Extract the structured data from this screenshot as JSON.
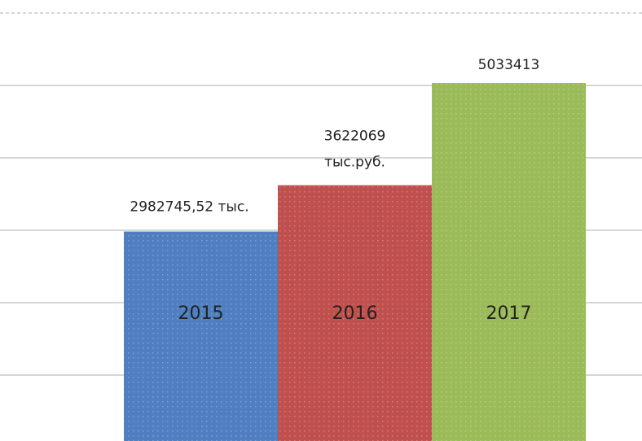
{
  "chart_data": {
    "type": "bar",
    "categories": [
      "2015",
      "2016",
      "2017"
    ],
    "values": [
      2982745.52,
      3622069,
      5033413
    ],
    "value_labels": [
      "2982745,52 тыс.",
      "3622069\nтыс.руб.",
      "5033413"
    ],
    "colors": [
      "#4f7fc0",
      "#c0504d",
      "#9bbb59"
    ],
    "ylim": [
      0,
      6000000
    ],
    "yticks": [
      0,
      1000000,
      2000000,
      3000000,
      4000000,
      5000000,
      6000000
    ],
    "grid": true
  }
}
